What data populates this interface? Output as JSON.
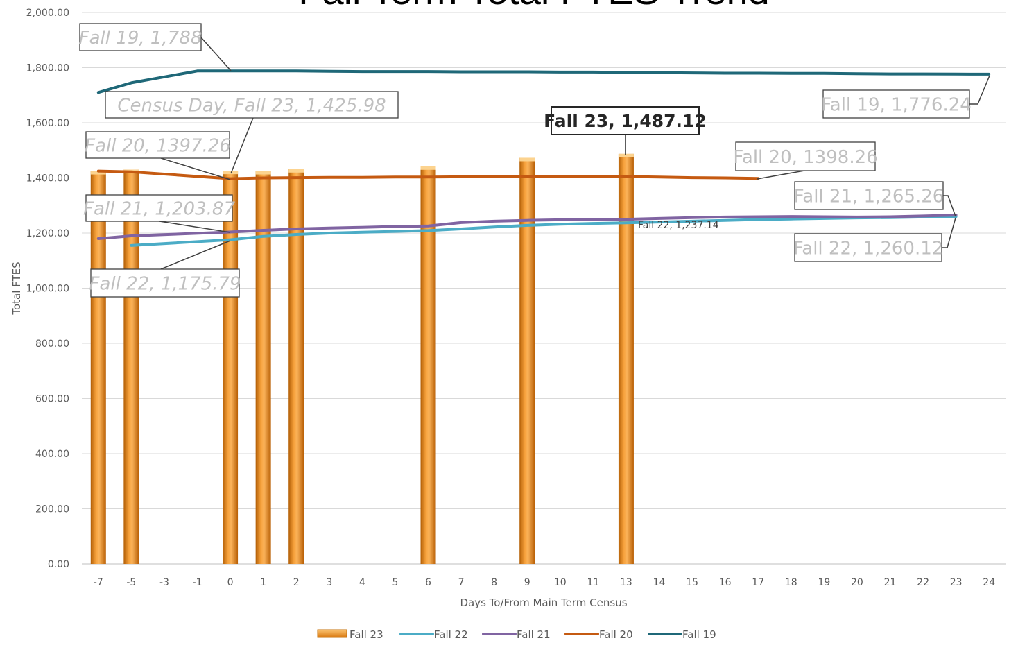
{
  "chart_data": {
    "type": "bar+line",
    "title": "Fall Term Total FTES Trend",
    "xlabel": "Days To/From Main Term Census",
    "ylabel": "Total FTES",
    "ylim": [
      0,
      2000
    ],
    "yticks": [
      "0.00",
      "200.00",
      "400.00",
      "600.00",
      "800.00",
      "1,000.00",
      "1,200.00",
      "1,400.00",
      "1,600.00",
      "1,800.00",
      "2,000.00"
    ],
    "categories": [
      "-7",
      "-5",
      "-3",
      "-1",
      "0",
      "1",
      "2",
      "3",
      "4",
      "5",
      "6",
      "7",
      "8",
      "9",
      "10",
      "11",
      "13",
      "14",
      "15",
      "16",
      "17",
      "18",
      "19",
      "20",
      "21",
      "22",
      "23",
      "24"
    ],
    "grid": true,
    "legend_position": "bottom",
    "colors": {
      "Fall 23": "#f39a2e",
      "Fall 22": "#4bacc6",
      "Fall 21": "#8064a2",
      "Fall 20": "#c55a11",
      "Fall 19": "#1f6878"
    },
    "series": [
      {
        "name": "Fall 23",
        "kind": "bar",
        "values": [
          1425,
          1430,
          null,
          null,
          1425.98,
          1425,
          1432,
          null,
          null,
          null,
          1442,
          null,
          null,
          1473,
          null,
          null,
          1487.12,
          null,
          null,
          null,
          null,
          null,
          null,
          null,
          null,
          null,
          null,
          null
        ]
      },
      {
        "name": "Fall 22",
        "kind": "line",
        "values": [
          null,
          1155,
          null,
          null,
          1175.79,
          1188,
          1195,
          1200,
          1203,
          1206,
          1209,
          1215,
          1222,
          1228,
          1232,
          1235,
          1237.14,
          1240,
          1243,
          1246,
          1249,
          1251,
          1253,
          1255,
          1256,
          1258,
          1260.12,
          null
        ]
      },
      {
        "name": "Fall 21",
        "kind": "line",
        "values": [
          1180,
          1190,
          null,
          null,
          1203.87,
          1210,
          1215,
          1218,
          1221,
          1224,
          1226,
          1238,
          1243,
          1246,
          1248,
          1249,
          1250,
          1253,
          1256,
          1258,
          1259,
          1260,
          1259,
          1258,
          1259,
          1262,
          1265.26,
          null
        ]
      },
      {
        "name": "Fall 20",
        "kind": "line",
        "values": [
          1425,
          1422,
          null,
          null,
          1397.26,
          1400,
          1401,
          1402,
          1402,
          1403,
          1403,
          1404,
          1404,
          1405,
          1405,
          1405,
          1405,
          1403,
          1401,
          1400,
          1398.26,
          null,
          null,
          null,
          null,
          null,
          null,
          null
        ]
      },
      {
        "name": "Fall 19",
        "kind": "line",
        "values": [
          1710,
          1745,
          null,
          1788,
          1788,
          1788,
          1788,
          1787,
          1786,
          1786,
          1786,
          1785,
          1785,
          1785,
          1784,
          1784,
          1783,
          1782,
          1781,
          1780,
          1780,
          1779,
          1779,
          1778,
          1777,
          1777,
          1776.5,
          1776.24
        ]
      }
    ],
    "annotations": [
      {
        "text": "Fall 19, 1,788",
        "series": "Fall 19",
        "category": "-1"
      },
      {
        "text": "Census Day, Fall 23, 1,425.98",
        "series": "Fall 23",
        "category": "0"
      },
      {
        "text": "Fall 20, 1397.26",
        "series": "Fall 20",
        "category": "0"
      },
      {
        "text": "Fall 21, 1,203.87",
        "series": "Fall 21",
        "category": "0"
      },
      {
        "text": "Fall 22, 1,175.79",
        "series": "Fall 22",
        "category": "0"
      },
      {
        "text": "Fall 23, 1,487.12",
        "series": "Fall 23",
        "category": "13",
        "emphasis": "bold"
      },
      {
        "text": "Fall 22, 1,237.14",
        "series": "Fall 22",
        "category": "13",
        "style": "plain"
      },
      {
        "text": "Fall 20, 1398.26",
        "series": "Fall 20",
        "category": "17"
      },
      {
        "text": "Fall 19, 1,776.24",
        "series": "Fall 19",
        "category": "24"
      },
      {
        "text": "Fall 21, 1,265.26",
        "series": "Fall 21",
        "category": "23"
      },
      {
        "text": "Fall 22, 1,260.12",
        "series": "Fall 22",
        "category": "23"
      }
    ]
  }
}
